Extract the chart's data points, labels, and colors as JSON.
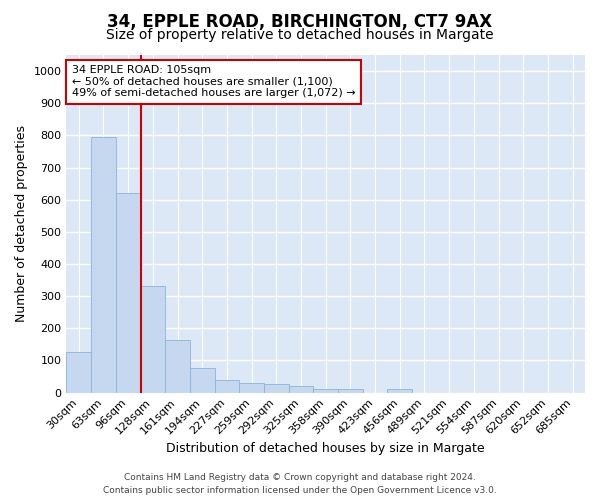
{
  "title": "34, EPPLE ROAD, BIRCHINGTON, CT7 9AX",
  "subtitle": "Size of property relative to detached houses in Margate",
  "xlabel": "Distribution of detached houses by size in Margate",
  "ylabel": "Number of detached properties",
  "bar_values": [
    125,
    795,
    620,
    330,
    163,
    78,
    40,
    30,
    27,
    20,
    12,
    10,
    0,
    10,
    0,
    0,
    0,
    0,
    0,
    0,
    0
  ],
  "bar_labels": [
    "30sqm",
    "63sqm",
    "96sqm",
    "128sqm",
    "161sqm",
    "194sqm",
    "227sqm",
    "259sqm",
    "292sqm",
    "325sqm",
    "358sqm",
    "390sqm",
    "423sqm",
    "456sqm",
    "489sqm",
    "521sqm",
    "554sqm",
    "587sqm",
    "620sqm",
    "652sqm",
    "685sqm"
  ],
  "bar_color": "#c5d8f0",
  "bar_edge_color": "#8ab4d8",
  "vline_x": 2.5,
  "vline_color": "#cc0000",
  "annotation_text": "34 EPPLE ROAD: 105sqm\n← 50% of detached houses are smaller (1,100)\n49% of semi-detached houses are larger (1,072) →",
  "annotation_box_edge": "#cc0000",
  "annotation_box_bg": "#ffffff",
  "ylim": [
    0,
    1050
  ],
  "yticks": [
    0,
    100,
    200,
    300,
    400,
    500,
    600,
    700,
    800,
    900,
    1000
  ],
  "plot_bg_color": "#dce8f5",
  "fig_bg_color": "#ffffff",
  "grid_color": "#ffffff",
  "title_fontsize": 12,
  "subtitle_fontsize": 10,
  "axis_label_fontsize": 9,
  "tick_fontsize": 8,
  "footer_fontsize": 6.5,
  "footer_text": "Contains HM Land Registry data © Crown copyright and database right 2024.\nContains public sector information licensed under the Open Government Licence v3.0."
}
